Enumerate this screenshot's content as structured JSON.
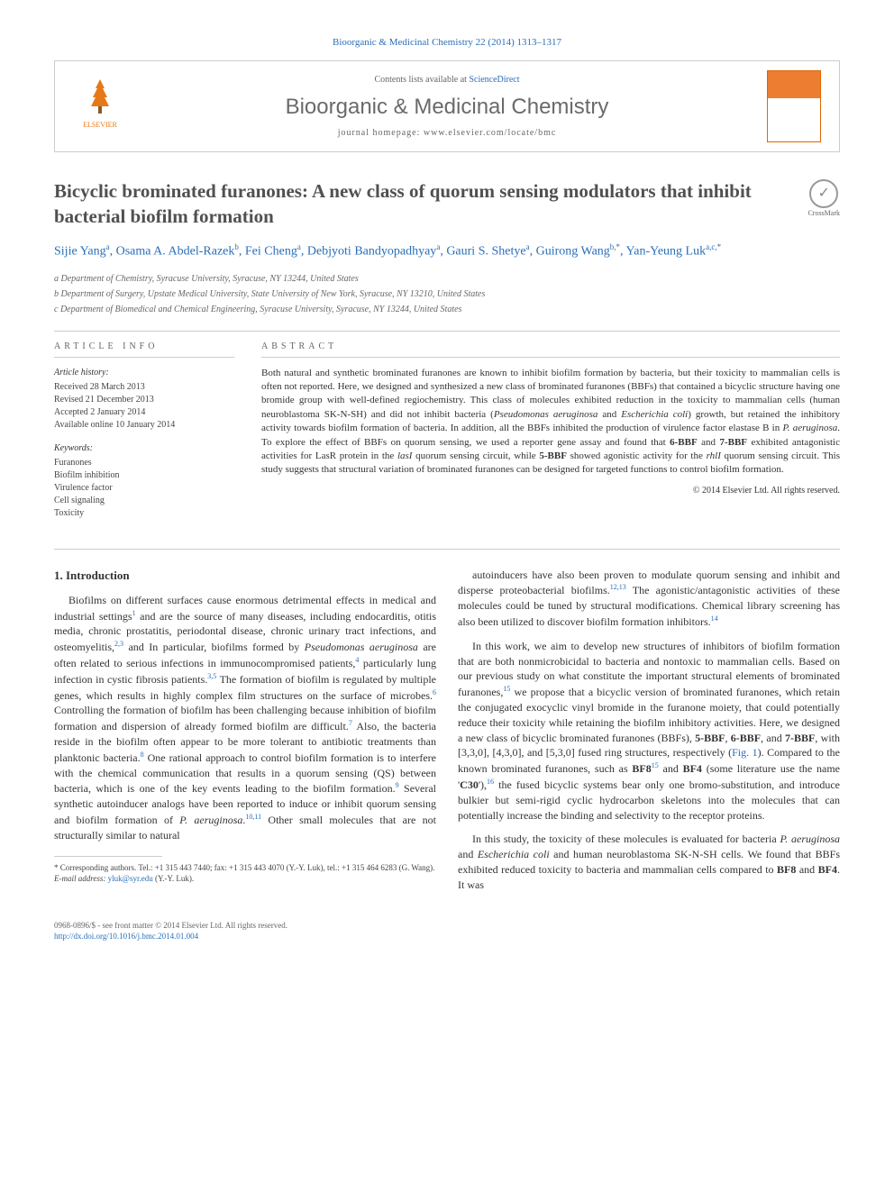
{
  "journal_ref": "Bioorganic & Medicinal Chemistry 22 (2014) 1313–1317",
  "header": {
    "contents_text": "Contents lists available at ",
    "contents_link": "ScienceDirect",
    "journal_name": "Bioorganic & Medicinal Chemistry",
    "homepage_label": "journal homepage: www.elsevier.com/locate/bmc",
    "publisher": "ELSEVIER"
  },
  "title": "Bicyclic brominated furanones: A new class of quorum sensing modulators that inhibit bacterial biofilm formation",
  "crossmark_label": "CrossMark",
  "authors_html": "Sijie Yang<sup>a</sup>, Osama A. Abdel-Razek<sup>b</sup>, Fei Cheng<sup>a</sup>, Debjyoti Bandyopadhyay<sup>a</sup>, Gauri S. Shetye<sup>a</sup>, Guirong Wang<sup>b,*</sup>, Yan-Yeung Luk<sup>a,c,*</sup>",
  "affiliations": [
    "a Department of Chemistry, Syracuse University, Syracuse, NY 13244, United States",
    "b Department of Surgery, Upstate Medical University, State University of New York, Syracuse, NY 13210, United States",
    "c Department of Biomedical and Chemical Engineering, Syracuse University, Syracuse, NY 13244, United States"
  ],
  "article_info": {
    "heading": "ARTICLE INFO",
    "history_label": "Article history:",
    "history": [
      "Received 28 March 2013",
      "Revised 21 December 2013",
      "Accepted 2 January 2014",
      "Available online 10 January 2014"
    ],
    "keywords_label": "Keywords:",
    "keywords": [
      "Furanones",
      "Biofilm inhibition",
      "Virulence factor",
      "Cell signaling",
      "Toxicity"
    ]
  },
  "abstract": {
    "heading": "ABSTRACT",
    "text_html": "Both natural and synthetic brominated furanones are known to inhibit biofilm formation by bacteria, but their toxicity to mammalian cells is often not reported. Here, we designed and synthesized a new class of brominated furanones (BBFs) that contained a bicyclic structure having one bromide group with well-defined regiochemistry. This class of molecules exhibited reduction in the toxicity to mammalian cells (human neuroblastoma SK-N-SH) and did not inhibit bacteria (<em>Pseudomonas aeruginosa</em> and <em>Escherichia coli</em>) growth, but retained the inhibitory activity towards biofilm formation of bacteria. In addition, all the BBFs inhibited the production of virulence factor elastase B in <em>P. aeruginosa</em>. To explore the effect of BBFs on quorum sensing, we used a reporter gene assay and found that <b>6-BBF</b> and <b>7-BBF</b> exhibited antagonistic activities for LasR protein in the <em>lasI</em> quorum sensing circuit, while <b>5-BBF</b> showed agonistic activity for the <em>rhlI</em> quorum sensing circuit. This study suggests that structural variation of brominated furanones can be designed for targeted functions to control biofilm formation.",
    "copyright": "© 2014 Elsevier Ltd. All rights reserved."
  },
  "intro": {
    "heading": "1. Introduction",
    "para1_html": "Biofilms on different surfaces cause enormous detrimental effects in medical and industrial settings<sup class='reflink'>1</sup> and are the source of many diseases, including endocarditis, otitis media, chronic prostatitis, periodontal disease, chronic urinary tract infections, and osteomyelitis,<sup class='reflink'>2,3</sup> and In particular, biofilms formed by <em>Pseudomonas aeruginosa</em> are often related to serious infections in immunocompromised patients,<sup class='reflink'>4</sup> particularly lung infection in cystic fibrosis patients.<sup class='reflink'>3,5</sup> The formation of biofilm is regulated by multiple genes, which results in highly complex film structures on the surface of microbes.<sup class='reflink'>6</sup> Controlling the formation of biofilm has been challenging because inhibition of biofilm formation and dispersion of already formed biofilm are difficult.<sup class='reflink'>7</sup> Also, the bacteria reside in the biofilm often appear to be more tolerant to antibiotic treatments than planktonic bacteria.<sup class='reflink'>8</sup> One rational approach to control biofilm formation is to interfere with the chemical communication that results in a quorum sensing (QS) between bacteria, which is one of the key events leading to the biofilm formation.<sup class='reflink'>9</sup> Several synthetic autoinducer analogs have been reported to induce or inhibit quorum sensing and biofilm formation of <em>P. aeruginosa</em>.<sup class='reflink'>10,11</sup> Other small molecules that are not structurally similar to natural",
    "para2_html": "autoinducers have also been proven to modulate quorum sensing and inhibit and disperse proteobacterial biofilms.<sup class='reflink'>12,13</sup> The agonistic/antagonistic activities of these molecules could be tuned by structural modifications. Chemical library screening has also been utilized to discover biofilm formation inhibitors.<sup class='reflink'>14</sup>",
    "para3_html": "In this work, we aim to develop new structures of inhibitors of biofilm formation that are both nonmicrobicidal to bacteria and nontoxic to mammalian cells. Based on our previous study on what constitute the important structural elements of brominated furanones,<sup class='reflink'>15</sup> we propose that a bicyclic version of brominated furanones, which retain the conjugated exocyclic vinyl bromide in the furanone moiety, that could potentially reduce their toxicity while retaining the biofilm inhibitory activities. Here, we designed a new class of bicyclic brominated furanones (BBFs), <b>5-BBF</b>, <b>6-BBF</b>, and <b>7-BBF</b>, with [3,3,0], [4,3,0], and [5,3,0] fused ring structures, respectively (<span class='reflink'>Fig. 1</span>). Compared to the known brominated furanones, such as <b>BF8</b><sup class='reflink'>15</sup> and <b>BF4</b> (some literature use the name '<b>C30</b>'),<sup class='reflink'>16</sup> the fused bicyclic systems bear only one bromo-substitution, and introduce bulkier but semi-rigid cyclic hydrocarbon skeletons into the molecules that can potentially increase the binding and selectivity to the receptor proteins.",
    "para4_html": "In this study, the toxicity of these molecules is evaluated for bacteria <em>P. aeruginosa</em> and <em>Escherichia coli</em> and human neuroblastoma SK-N-SH cells. We found that BBFs exhibited reduced toxicity to bacteria and mammalian cells compared to <b>BF8</b> and <b>BF4</b>. It was"
  },
  "footnotes": {
    "corresponding": "* Corresponding authors. Tel.: +1 315 443 7440; fax: +1 315 443 4070 (Y.-Y. Luk), tel.: +1 315 464 6283 (G. Wang).",
    "email_label": "E-mail address:",
    "email": "yluk@syr.edu",
    "email_suffix": "(Y.-Y. Luk)."
  },
  "footer": {
    "line1": "0968-0896/$ - see front matter © 2014 Elsevier Ltd. All rights reserved.",
    "doi": "http://dx.doi.org/10.1016/j.bmc.2014.01.004"
  },
  "colors": {
    "link": "#2a6eb8",
    "text": "#333333",
    "muted": "#666666",
    "elsevier_orange": "#e67817",
    "border": "#cccccc"
  },
  "typography": {
    "body_fontsize": 13,
    "title_fontsize": 21,
    "journal_name_fontsize": 24,
    "abstract_fontsize": 11,
    "small_fontsize": 10,
    "footnote_fontsize": 9
  }
}
